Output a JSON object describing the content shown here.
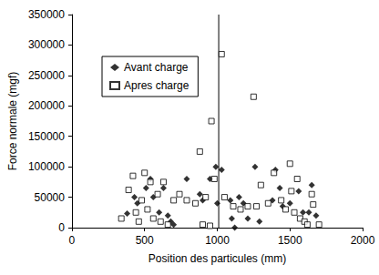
{
  "chart_data": {
    "type": "scatter",
    "x_label": "Position des particules (mm)",
    "y_label": "Force normale (mgf)",
    "xlim": [
      0,
      2000
    ],
    "xticks": [
      0,
      500,
      1000,
      1500,
      2000
    ],
    "ylim": [
      0,
      350000
    ],
    "yticks": [
      0,
      50000,
      100000,
      150000,
      200000,
      250000,
      300000,
      350000
    ],
    "grid": false,
    "legend": "upper left",
    "series": [
      {
        "name": "Avant charge",
        "type": "scatter",
        "marker": "diamond",
        "color": "#000000",
        "x": [
          380,
          430,
          450,
          510,
          540,
          560,
          600,
          630,
          660,
          680,
          700,
          790,
          880,
          900,
          950,
          990,
          1000,
          1030,
          1090,
          1100,
          1120,
          1150,
          1180,
          1210,
          1260,
          1290,
          1380,
          1400,
          1430,
          1450,
          1500,
          1560,
          1590,
          1630,
          1650,
          1680
        ],
        "values": [
          23000,
          50000,
          40000,
          65000,
          80000,
          50000,
          25000,
          65000,
          20000,
          10000,
          5000,
          80000,
          55000,
          45000,
          80000,
          100000,
          40000,
          95000,
          45000,
          15000,
          0,
          50000,
          40000,
          15000,
          100000,
          10000,
          45000,
          95000,
          65000,
          35000,
          40000,
          60000,
          25000,
          25000,
          70000,
          20000
        ]
      },
      {
        "name": "Apres charge",
        "type": "scatter",
        "marker": "square_open",
        "color": "#000000",
        "x": [
          340,
          390,
          420,
          440,
          460,
          480,
          500,
          520,
          540,
          560,
          590,
          610,
          630,
          660,
          700,
          740,
          790,
          850,
          880,
          900,
          920,
          950,
          960,
          980,
          1030,
          1050,
          1110,
          1160,
          1210,
          1250,
          1270,
          1300,
          1350,
          1390,
          1440,
          1470,
          1500,
          1510,
          1530,
          1550,
          1570,
          1600,
          1620,
          1650,
          1660,
          1700
        ],
        "values": [
          15000,
          62000,
          85000,
          25000,
          10000,
          45000,
          90000,
          30000,
          75000,
          15000,
          55000,
          10000,
          75000,
          5000,
          45000,
          55000,
          45000,
          40000,
          125000,
          5000,
          50000,
          3000,
          175000,
          80000,
          285000,
          50000,
          35000,
          30000,
          35000,
          215000,
          35000,
          70000,
          40000,
          90000,
          45000,
          30000,
          105000,
          60000,
          25000,
          80000,
          15000,
          10000,
          5000,
          55000,
          38000,
          5000
        ]
      },
      {
        "type": "line",
        "color": "#000000",
        "line_style": "solid",
        "x": [
          1010,
          1010
        ],
        "values": [
          0,
          350000
        ]
      }
    ]
  }
}
